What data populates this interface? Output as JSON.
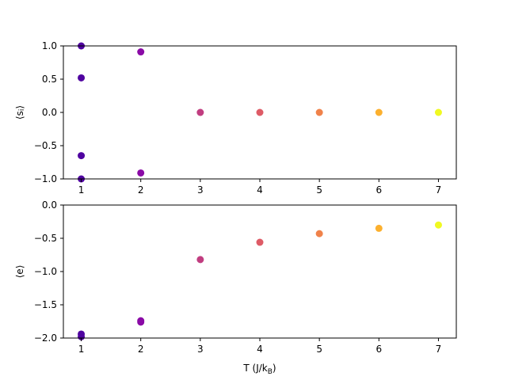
{
  "chart_data": [
    {
      "type": "scatter",
      "title": "",
      "xlabel": "",
      "ylabel": "⟨s_i⟩",
      "ylabel_parts": {
        "main": "⟨s",
        "sub": "i",
        "end": "⟩"
      },
      "xlim": [
        0.7,
        7.3
      ],
      "ylim": [
        -1.0,
        1.0
      ],
      "xticks": [
        1,
        2,
        3,
        4,
        5,
        6,
        7
      ],
      "yticks": [
        -1.0,
        -0.5,
        0.0,
        0.5,
        1.0
      ],
      "ytick_labels": [
        "−1.0",
        "−0.5",
        "0.0",
        "0.5",
        "1.0"
      ],
      "grid": false,
      "colormap": "plasma",
      "points": [
        {
          "x": 1,
          "y": 1.0,
          "color": "#4f03a0"
        },
        {
          "x": 1,
          "y": 0.52,
          "color": "#4f03a0"
        },
        {
          "x": 1,
          "y": -0.65,
          "color": "#4f03a0"
        },
        {
          "x": 1,
          "y": -1.0,
          "color": "#4f03a0"
        },
        {
          "x": 2,
          "y": 0.91,
          "color": "#8a0aa6"
        },
        {
          "x": 2,
          "y": -0.91,
          "color": "#8a0aa6"
        },
        {
          "x": 3,
          "y": 0.0,
          "color": "#c13d80"
        },
        {
          "x": 4,
          "y": 0.0,
          "color": "#de5b66"
        },
        {
          "x": 5,
          "y": 0.0,
          "color": "#f0824a"
        },
        {
          "x": 6,
          "y": 0.0,
          "color": "#fcb02e"
        },
        {
          "x": 7,
          "y": 0.0,
          "color": "#f0f921"
        }
      ]
    },
    {
      "type": "scatter",
      "title": "",
      "xlabel": "T (J/k_B)",
      "xlabel_parts": {
        "main": "T (J/k",
        "sub": "B",
        "end": ")"
      },
      "ylabel": "⟨e⟩",
      "xlim": [
        0.7,
        7.3
      ],
      "ylim": [
        -2.0,
        0.0
      ],
      "xticks": [
        1,
        2,
        3,
        4,
        5,
        6,
        7
      ],
      "yticks": [
        -2.0,
        -1.5,
        -1.0,
        -0.5,
        0.0
      ],
      "ytick_labels": [
        "−2.0",
        "−1.5",
        "−1.0",
        "−0.5",
        "0.0"
      ],
      "grid": false,
      "colormap": "plasma",
      "points": [
        {
          "x": 1,
          "y": -1.94,
          "color": "#4f03a0"
        },
        {
          "x": 1,
          "y": -1.98,
          "color": "#4f03a0"
        },
        {
          "x": 2,
          "y": -1.74,
          "color": "#8a0aa6"
        },
        {
          "x": 2,
          "y": -1.76,
          "color": "#8a0aa6"
        },
        {
          "x": 3,
          "y": -0.82,
          "color": "#c13d80"
        },
        {
          "x": 4,
          "y": -0.56,
          "color": "#de5b66"
        },
        {
          "x": 5,
          "y": -0.43,
          "color": "#f0824a"
        },
        {
          "x": 6,
          "y": -0.35,
          "color": "#fcb02e"
        },
        {
          "x": 7,
          "y": -0.3,
          "color": "#f0f921"
        }
      ]
    }
  ]
}
